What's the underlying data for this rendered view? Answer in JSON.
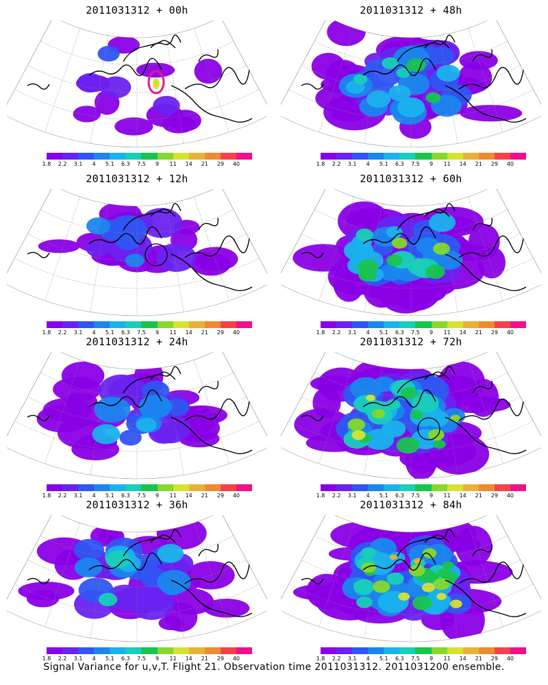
{
  "panels": [
    {
      "title": "2011031312 + 00h",
      "lead": "00h",
      "level": 0,
      "marker": null
    },
    {
      "title": "2011031312 + 12h",
      "lead": "12h",
      "level": 1,
      "marker": "circle"
    },
    {
      "title": "2011031312 + 24h",
      "lead": "24h",
      "level": 2,
      "marker": null
    },
    {
      "title": "2011031312 + 36h",
      "lead": "36h",
      "level": 3,
      "marker": null
    },
    {
      "title": "2011031312 + 48h",
      "lead": "48h",
      "level": 4,
      "marker": null
    },
    {
      "title": "2011031312 + 60h",
      "lead": "60h",
      "level": 5,
      "marker": null
    },
    {
      "title": "2011031312 + 72h",
      "lead": "72h",
      "level": 6,
      "marker": "circle"
    },
    {
      "title": "2011031312 + 84h",
      "lead": "84h",
      "level": 7,
      "marker": null
    }
  ],
  "colorbar": {
    "labels": [
      "1.8",
      "2.2",
      "3.1",
      "4",
      "5.1",
      "6.3",
      "7.5",
      "9",
      "11",
      "14",
      "21",
      "29",
      "40"
    ],
    "colors": [
      "#8a00e6",
      "#6a22f0",
      "#2f55f2",
      "#1a86ee",
      "#19b2ee",
      "#18cfb8",
      "#18c44e",
      "#86d82c",
      "#d6e232",
      "#e8b236",
      "#f08a30",
      "#f4424a",
      "#f0108a"
    ]
  },
  "caption": "Signal Variance for u,v,T. Flight 21. Observation time 2011031312. 2011031200 ensemble."
}
